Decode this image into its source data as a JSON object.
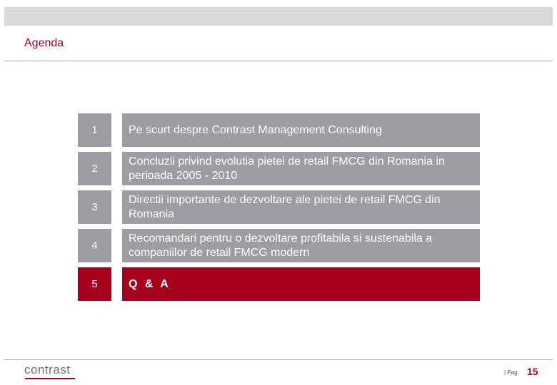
{
  "header": {
    "title": "Agenda"
  },
  "agenda": {
    "items": [
      {
        "number": "1",
        "text": "Pe scurt despre Contrast Management Consulting"
      },
      {
        "number": "2",
        "text": "Concluzii privind evolutia pietei de retail FMCG din Romania in perioada 2005 - 2010"
      },
      {
        "number": "3",
        "text": "Directii importante de dezvoltare ale pietei de retail FMCG din Romania"
      },
      {
        "number": "4",
        "text": "Recomandari pentru o dezvoltare profitabila si sustenabila a companiilor de retail FMCG modern"
      },
      {
        "number": "5",
        "text": "Q & A"
      }
    ],
    "active_index": 4
  },
  "footer": {
    "logo_text": "contrast",
    "page_label": "| Pag",
    "page_number": "15"
  },
  "colors": {
    "accent": "#a5001e",
    "item_background": "#9d9ea3",
    "header_band": "#d9d9db"
  }
}
